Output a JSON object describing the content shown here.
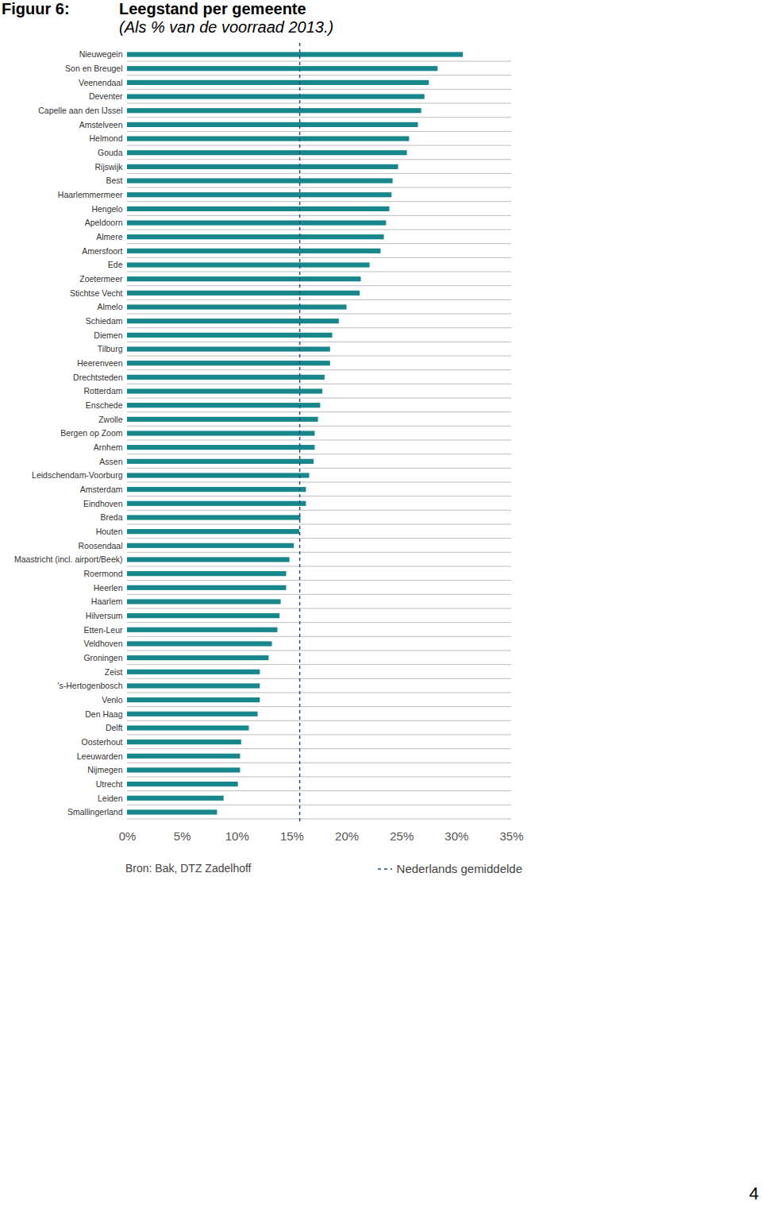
{
  "figure": "Figuur 6:",
  "page_number": "4",
  "chart_data": {
    "type": "bar",
    "orientation": "horizontal",
    "title": "Leegstand per gemeente",
    "subtitle": "(Als % van de voorraad 2013.)",
    "source": "Bron: Bak, DTZ Zadelhoff",
    "categories": [
      "Nieuwegein",
      "Son en Breugel",
      "Veenendaal",
      "Deventer",
      "Capelle aan den IJssel",
      "Amstelveen",
      "Helmond",
      "Gouda",
      "Rijswijk",
      "Best",
      "Haarlemmermeer",
      "Hengelo",
      "Apeldoorn",
      "Almere",
      "Amersfoort",
      "Ede",
      "Zoetermeer",
      "Stichtse Vecht",
      "Almelo",
      "Schiedam",
      "Diemen",
      "Tilburg",
      "Heerenveen",
      "Drechtsteden",
      "Rotterdam",
      "Enschede",
      "Zwolle",
      "Bergen op Zoom",
      "Arnhem",
      "Assen",
      "Leidschendam-Voorburg",
      "Amsterdam",
      "Eindhoven",
      "Breda",
      "Houten",
      "Roosendaal",
      "Maastricht (incl. airport/Beek)",
      "Roermond",
      "Heerlen",
      "Haarlem",
      "Hilversum",
      "Etten-Leur",
      "Veldhoven",
      "Groningen",
      "Zeist",
      "'s-Hertogenbosch",
      "Venlo",
      "Den Haag",
      "Delft",
      "Oosterhout",
      "Leeuwarden",
      "Nijmegen",
      "Utrecht",
      "Leiden",
      "Smallingerland"
    ],
    "values": [
      30.6,
      28.3,
      27.5,
      27.1,
      26.8,
      26.5,
      25.7,
      25.5,
      24.7,
      24.2,
      24.1,
      23.9,
      23.6,
      23.4,
      23.1,
      22.1,
      21.3,
      21.2,
      20.0,
      19.3,
      18.7,
      18.5,
      18.5,
      18.0,
      17.8,
      17.6,
      17.4,
      17.1,
      17.1,
      17.0,
      16.6,
      16.3,
      16.3,
      15.8,
      15.7,
      15.2,
      14.8,
      14.5,
      14.5,
      14.0,
      13.9,
      13.7,
      13.2,
      12.9,
      12.1,
      12.1,
      12.1,
      11.9,
      11.1,
      10.4,
      10.3,
      10.3,
      10.1,
      8.8,
      8.2
    ],
    "color": "#17878c",
    "xlim": [
      0,
      35
    ],
    "xticks": [
      {
        "value": 0,
        "label": "0%"
      },
      {
        "value": 5,
        "label": "5%"
      },
      {
        "value": 10,
        "label": "10%"
      },
      {
        "value": 15,
        "label": "15%"
      },
      {
        "value": 20,
        "label": "20%"
      },
      {
        "value": 25,
        "label": "25%"
      },
      {
        "value": 30,
        "label": "30%"
      },
      {
        "value": 35,
        "label": "35%"
      }
    ],
    "grid": true,
    "reference_line": {
      "label": "Nederlands gemiddelde",
      "value": 15.7,
      "line_style": "dashed",
      "color": "#2b4c7e"
    }
  }
}
